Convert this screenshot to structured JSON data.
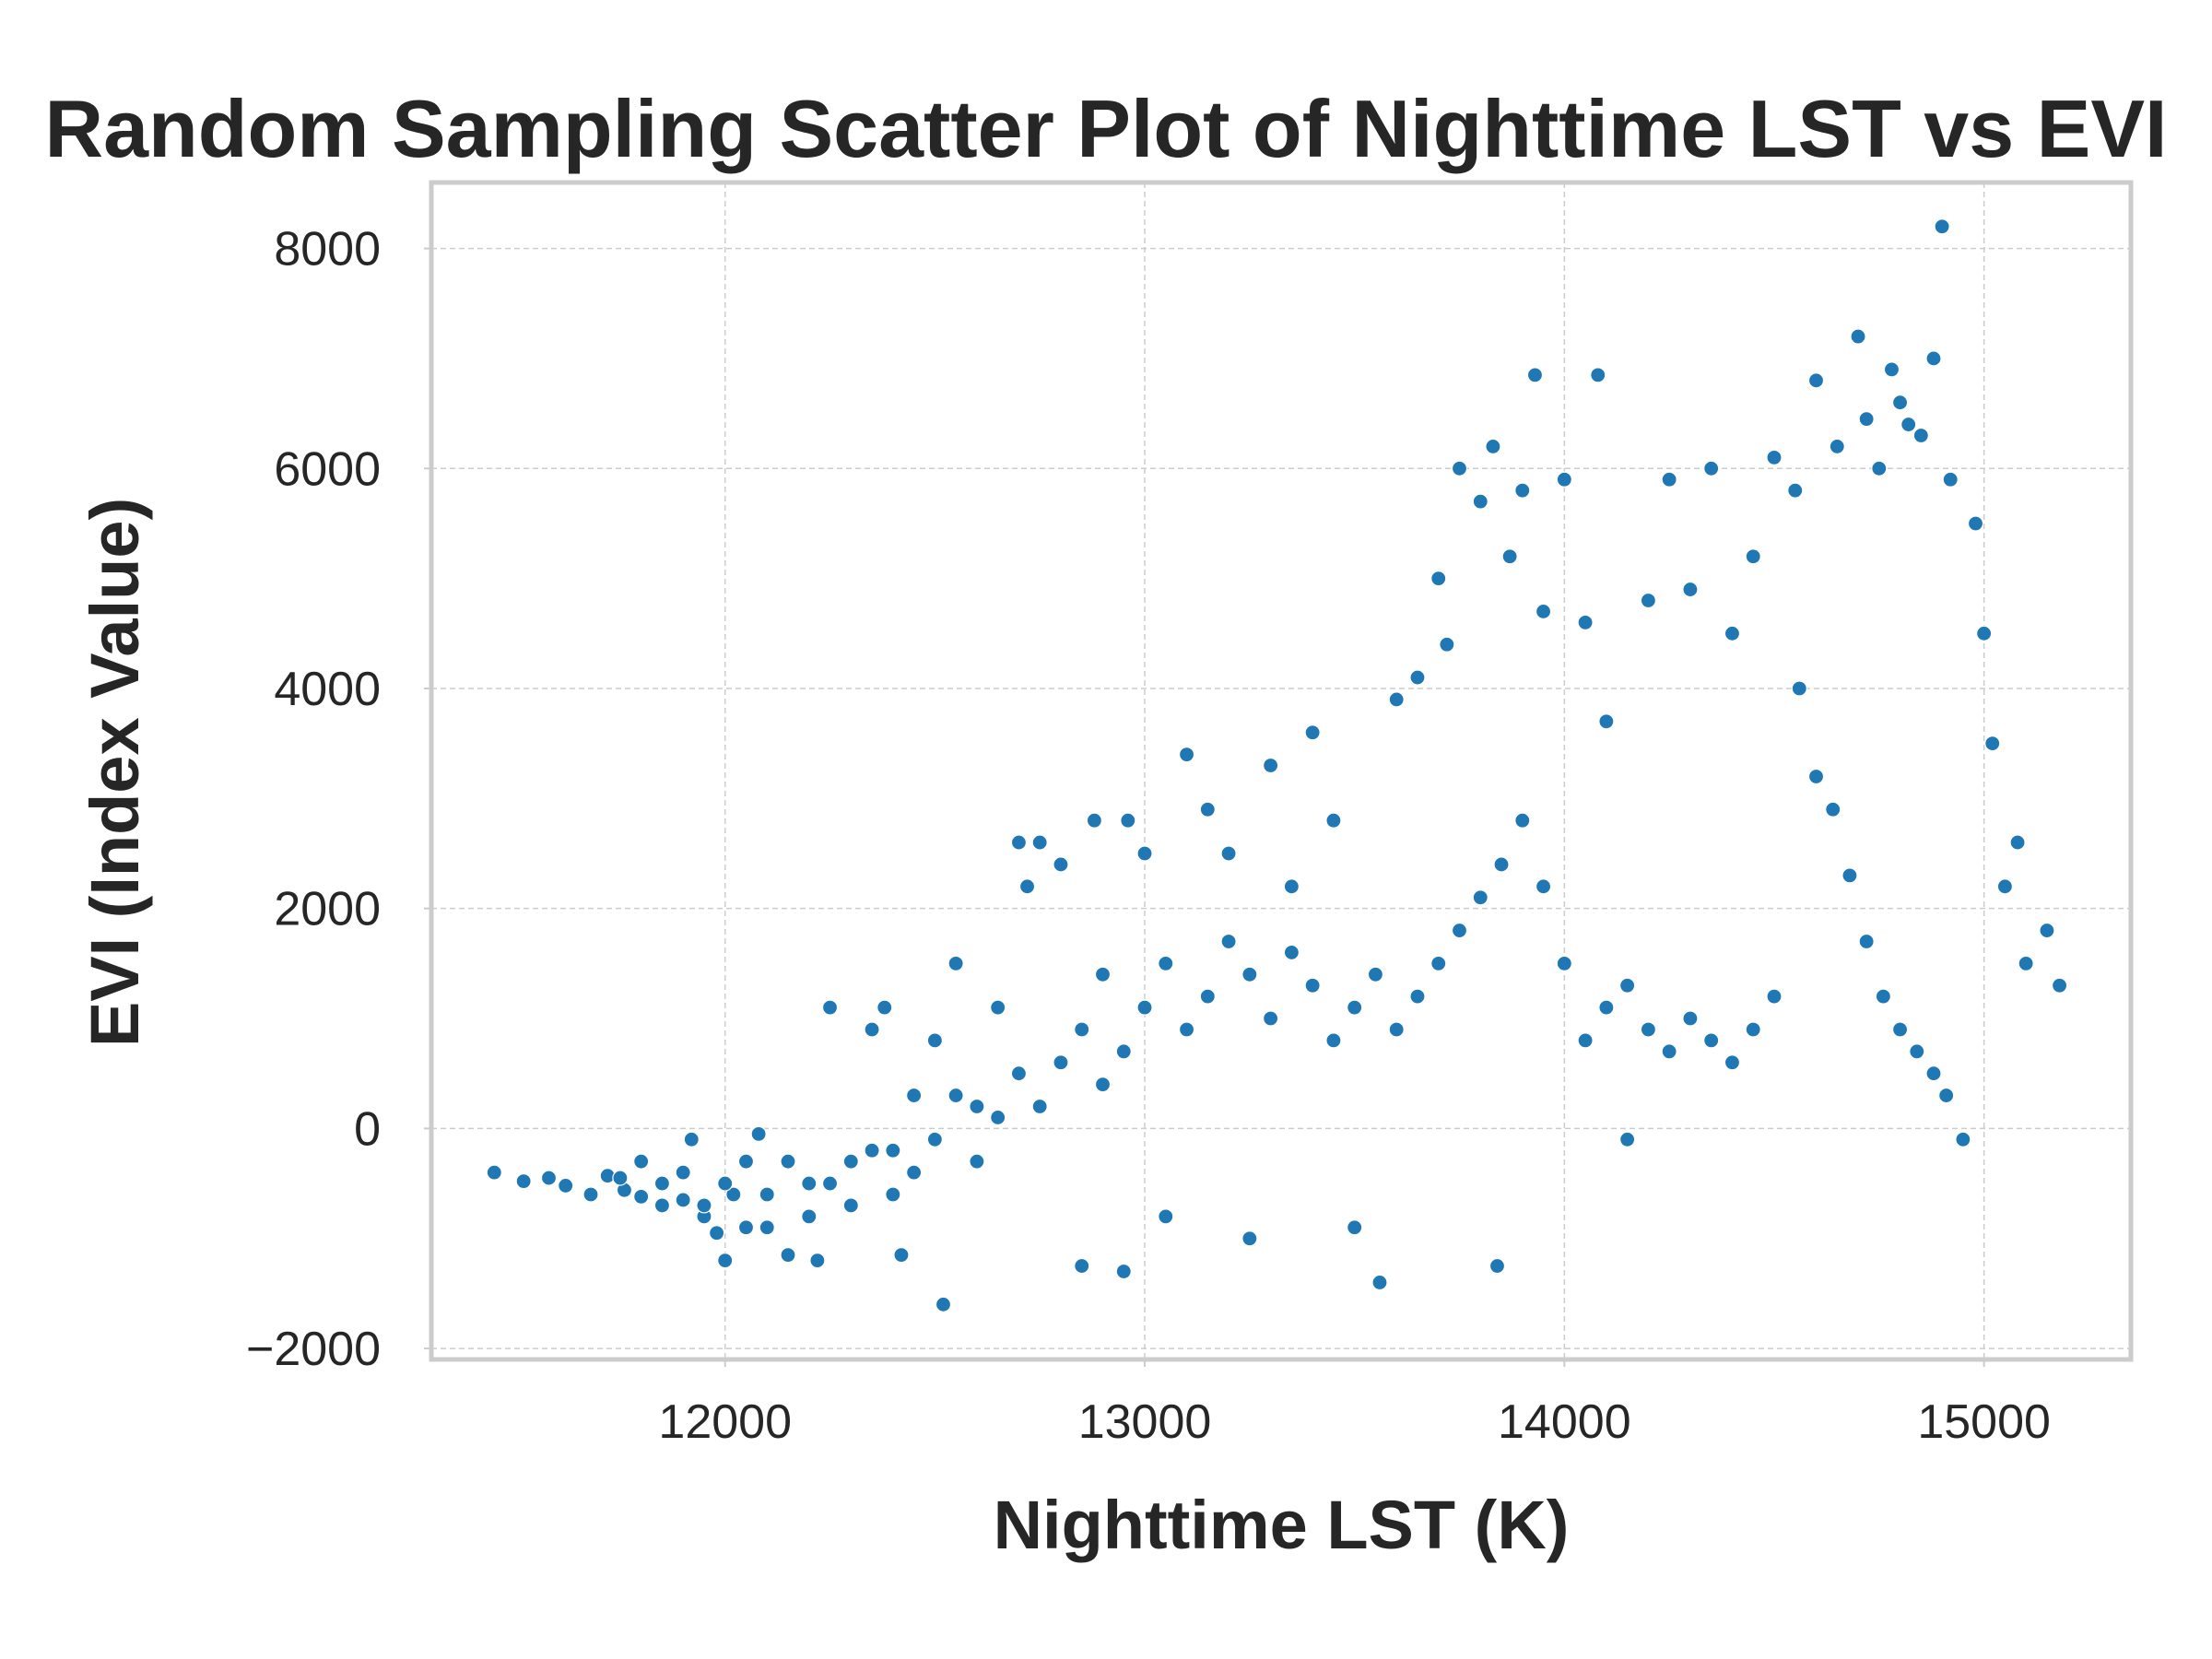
{
  "chart_data": {
    "type": "scatter",
    "title": "Random Sampling Scatter Plot of Nighttime LST vs EVI",
    "xlabel": "Nighttime LST (K)",
    "ylabel": "EVI (Index Value)",
    "xlim": [
      11300,
      15350
    ],
    "ylim": [
      -2100,
      8600
    ],
    "xticks": [
      12000,
      13000,
      14000,
      15000
    ],
    "xtick_labels": [
      "12000",
      "13000",
      "14000",
      "15000"
    ],
    "yticks": [
      -2000,
      0,
      2000,
      4000,
      6000,
      8000
    ],
    "ytick_labels": [
      "−2000",
      "0",
      "2000",
      "4000",
      "6000",
      "8000"
    ],
    "grid": true,
    "legend": "none",
    "marker_color": "#1f77b4",
    "series": [
      {
        "points": [
          [
            11450,
            -400
          ],
          [
            11520,
            -480
          ],
          [
            11580,
            -450
          ],
          [
            11620,
            -520
          ],
          [
            11680,
            -600
          ],
          [
            11720,
            -430
          ],
          [
            11760,
            -560
          ],
          [
            11800,
            -620
          ],
          [
            11850,
            -700
          ],
          [
            11900,
            -650
          ],
          [
            11920,
            -100
          ],
          [
            11950,
            -800
          ],
          [
            11980,
            -950
          ],
          [
            12000,
            -1200
          ],
          [
            12020,
            -600
          ],
          [
            12050,
            -300
          ],
          [
            12080,
            -50
          ],
          [
            12100,
            -900
          ],
          [
            12150,
            -1150
          ],
          [
            12200,
            -500
          ],
          [
            12220,
            -1200
          ],
          [
            12250,
            1100
          ],
          [
            12300,
            -300
          ],
          [
            12350,
            900
          ],
          [
            12380,
            1100
          ],
          [
            12400,
            -200
          ],
          [
            12420,
            -1150
          ],
          [
            12450,
            300
          ],
          [
            12500,
            800
          ],
          [
            12520,
            -1600
          ],
          [
            12550,
            1500
          ],
          [
            12600,
            200
          ],
          [
            12650,
            1100
          ],
          [
            12700,
            2600
          ],
          [
            12720,
            2200
          ],
          [
            12750,
            2600
          ],
          [
            12800,
            2400
          ],
          [
            12850,
            -1250
          ],
          [
            12880,
            2800
          ],
          [
            12900,
            1400
          ],
          [
            12950,
            -1300
          ],
          [
            12960,
            2800
          ],
          [
            13000,
            2500
          ],
          [
            13050,
            -800
          ],
          [
            13100,
            3400
          ],
          [
            13150,
            2900
          ],
          [
            13200,
            2500
          ],
          [
            13250,
            -1000
          ],
          [
            13300,
            3300
          ],
          [
            13350,
            2200
          ],
          [
            13400,
            3600
          ],
          [
            13450,
            2800
          ],
          [
            13500,
            -900
          ],
          [
            13560,
            -1400
          ],
          [
            13600,
            3900
          ],
          [
            13650,
            4100
          ],
          [
            13700,
            5000
          ],
          [
            13720,
            4400
          ],
          [
            13750,
            6000
          ],
          [
            13800,
            5700
          ],
          [
            13830,
            6200
          ],
          [
            13840,
            -1250
          ],
          [
            13870,
            5200
          ],
          [
            13900,
            5800
          ],
          [
            13930,
            6850
          ],
          [
            13950,
            4700
          ],
          [
            14000,
            5900
          ],
          [
            14050,
            4600
          ],
          [
            14080,
            6850
          ],
          [
            14100,
            3700
          ],
          [
            14150,
            -100
          ],
          [
            14200,
            4800
          ],
          [
            14250,
            5900
          ],
          [
            14300,
            4900
          ],
          [
            14350,
            6000
          ],
          [
            14400,
            4500
          ],
          [
            14450,
            5200
          ],
          [
            14500,
            6100
          ],
          [
            14550,
            5800
          ],
          [
            14600,
            6800
          ],
          [
            14650,
            6200
          ],
          [
            14700,
            7200
          ],
          [
            14720,
            6450
          ],
          [
            14750,
            6000
          ],
          [
            14780,
            6900
          ],
          [
            14800,
            6600
          ],
          [
            14820,
            6400
          ],
          [
            14850,
            6300
          ],
          [
            14880,
            7000
          ],
          [
            14900,
            8200
          ],
          [
            14920,
            5900
          ],
          [
            14950,
            -100
          ],
          [
            14980,
            5500
          ],
          [
            15000,
            4500
          ],
          [
            15020,
            3500
          ],
          [
            15050,
            2200
          ],
          [
            15080,
            2600
          ],
          [
            15100,
            1500
          ],
          [
            15150,
            1800
          ],
          [
            15180,
            1300
          ],
          [
            14560,
            4000
          ],
          [
            14600,
            3200
          ],
          [
            14640,
            2900
          ],
          [
            14680,
            2300
          ],
          [
            14720,
            1700
          ],
          [
            14760,
            1200
          ],
          [
            14800,
            900
          ],
          [
            14840,
            700
          ],
          [
            14880,
            500
          ],
          [
            14910,
            300
          ],
          [
            14500,
            1200
          ],
          [
            14450,
            900
          ],
          [
            14400,
            600
          ],
          [
            14350,
            800
          ],
          [
            14300,
            1000
          ],
          [
            14250,
            700
          ],
          [
            14200,
            900
          ],
          [
            14150,
            1300
          ],
          [
            14100,
            1100
          ],
          [
            14050,
            800
          ],
          [
            14000,
            1500
          ],
          [
            13950,
            2200
          ],
          [
            13900,
            2800
          ],
          [
            13850,
            2400
          ],
          [
            13800,
            2100
          ],
          [
            13750,
            1800
          ],
          [
            13700,
            1500
          ],
          [
            13650,
            1200
          ],
          [
            13600,
            900
          ],
          [
            13550,
            1400
          ],
          [
            13500,
            1100
          ],
          [
            13450,
            800
          ],
          [
            13400,
            1300
          ],
          [
            13350,
            1600
          ],
          [
            13300,
            1000
          ],
          [
            13250,
            1400
          ],
          [
            13200,
            1700
          ],
          [
            13150,
            1200
          ],
          [
            13100,
            900
          ],
          [
            13050,
            1500
          ],
          [
            13000,
            1100
          ],
          [
            12950,
            700
          ],
          [
            12900,
            400
          ],
          [
            12850,
            900
          ],
          [
            12800,
            600
          ],
          [
            12750,
            200
          ],
          [
            12700,
            500
          ],
          [
            12650,
            100
          ],
          [
            12600,
            -300
          ],
          [
            12550,
            300
          ],
          [
            12500,
            -100
          ],
          [
            12450,
            -400
          ],
          [
            12400,
            -600
          ],
          [
            12350,
            -200
          ],
          [
            12300,
            -700
          ],
          [
            12250,
            -500
          ],
          [
            12200,
            -800
          ],
          [
            12150,
            -300
          ],
          [
            12100,
            -600
          ],
          [
            12050,
            -900
          ],
          [
            12000,
            -500
          ],
          [
            11950,
            -700
          ],
          [
            11900,
            -400
          ],
          [
            11850,
            -500
          ],
          [
            11800,
            -300
          ],
          [
            11750,
            -450
          ]
        ]
      }
    ]
  }
}
